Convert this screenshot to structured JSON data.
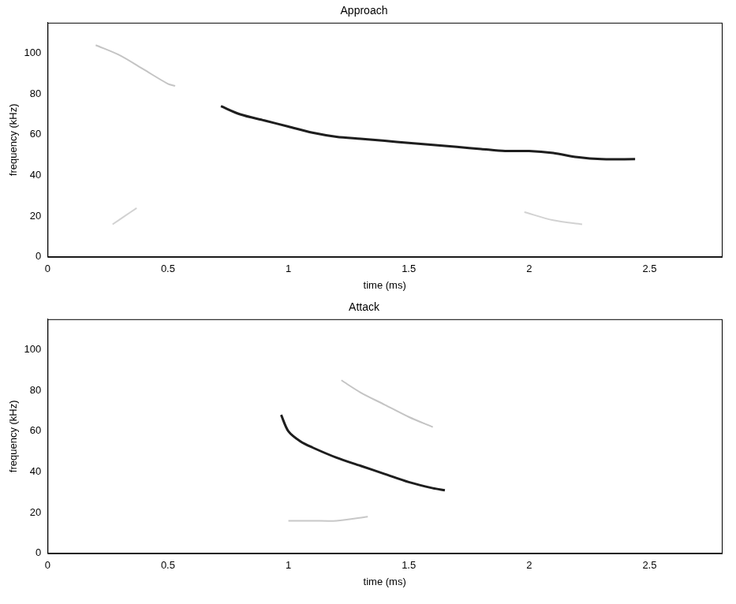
{
  "chart_data": [
    {
      "type": "line",
      "title": "Approach",
      "x_label": "time (ms)",
      "y_label": "frequency (kHz)",
      "xlim": [
        0,
        2.8
      ],
      "ylim": [
        0,
        115
      ],
      "xticks": [
        0,
        0.5,
        1,
        1.5,
        2,
        2.5
      ],
      "yticks": [
        0,
        20,
        40,
        60,
        80,
        100
      ],
      "grid": false,
      "series": [
        {
          "color": "#c4c4c4",
          "x": [
            0.2,
            0.3,
            0.4,
            0.5,
            0.53
          ],
          "values": [
            104,
            99,
            92,
            85,
            84
          ]
        },
        {
          "color": "#1e1e1e",
          "x": [
            0.72,
            0.8,
            0.9,
            1.0,
            1.1,
            1.2,
            1.3,
            1.4,
            1.5,
            1.6,
            1.7,
            1.8,
            1.9,
            2.0,
            2.1,
            2.2,
            2.3,
            2.44
          ],
          "values": [
            74,
            70,
            67,
            64,
            61,
            59,
            58,
            57,
            56,
            55,
            54,
            53,
            52,
            52,
            51,
            49,
            48,
            48
          ]
        },
        {
          "color": "#d2d2d2",
          "x": [
            0.27,
            0.32,
            0.37
          ],
          "values": [
            16,
            20,
            24
          ]
        },
        {
          "color": "#d2d2d2",
          "x": [
            1.98,
            2.1,
            2.22
          ],
          "values": [
            22,
            18,
            16
          ]
        }
      ]
    },
    {
      "type": "line",
      "title": "Attack",
      "x_label": "time (ms)",
      "y_label": "frequency (kHz)",
      "xlim": [
        0,
        2.8
      ],
      "ylim": [
        0,
        115
      ],
      "xticks": [
        0,
        0.5,
        1,
        1.5,
        2,
        2.5
      ],
      "yticks": [
        0,
        20,
        40,
        60,
        80,
        100
      ],
      "grid": false,
      "series": [
        {
          "color": "#1e1e1e",
          "x": [
            0.97,
            1.0,
            1.05,
            1.1,
            1.2,
            1.3,
            1.4,
            1.5,
            1.6,
            1.65
          ],
          "values": [
            68,
            60,
            55,
            52,
            47,
            43,
            39,
            35,
            32,
            31
          ]
        },
        {
          "color": "#c4c4c4",
          "x": [
            1.22,
            1.3,
            1.4,
            1.5,
            1.6
          ],
          "values": [
            85,
            79,
            73,
            67,
            62
          ]
        },
        {
          "color": "#c8c8c8",
          "x": [
            1.0,
            1.1,
            1.2,
            1.33
          ],
          "values": [
            16,
            16,
            16,
            18
          ]
        }
      ]
    }
  ]
}
